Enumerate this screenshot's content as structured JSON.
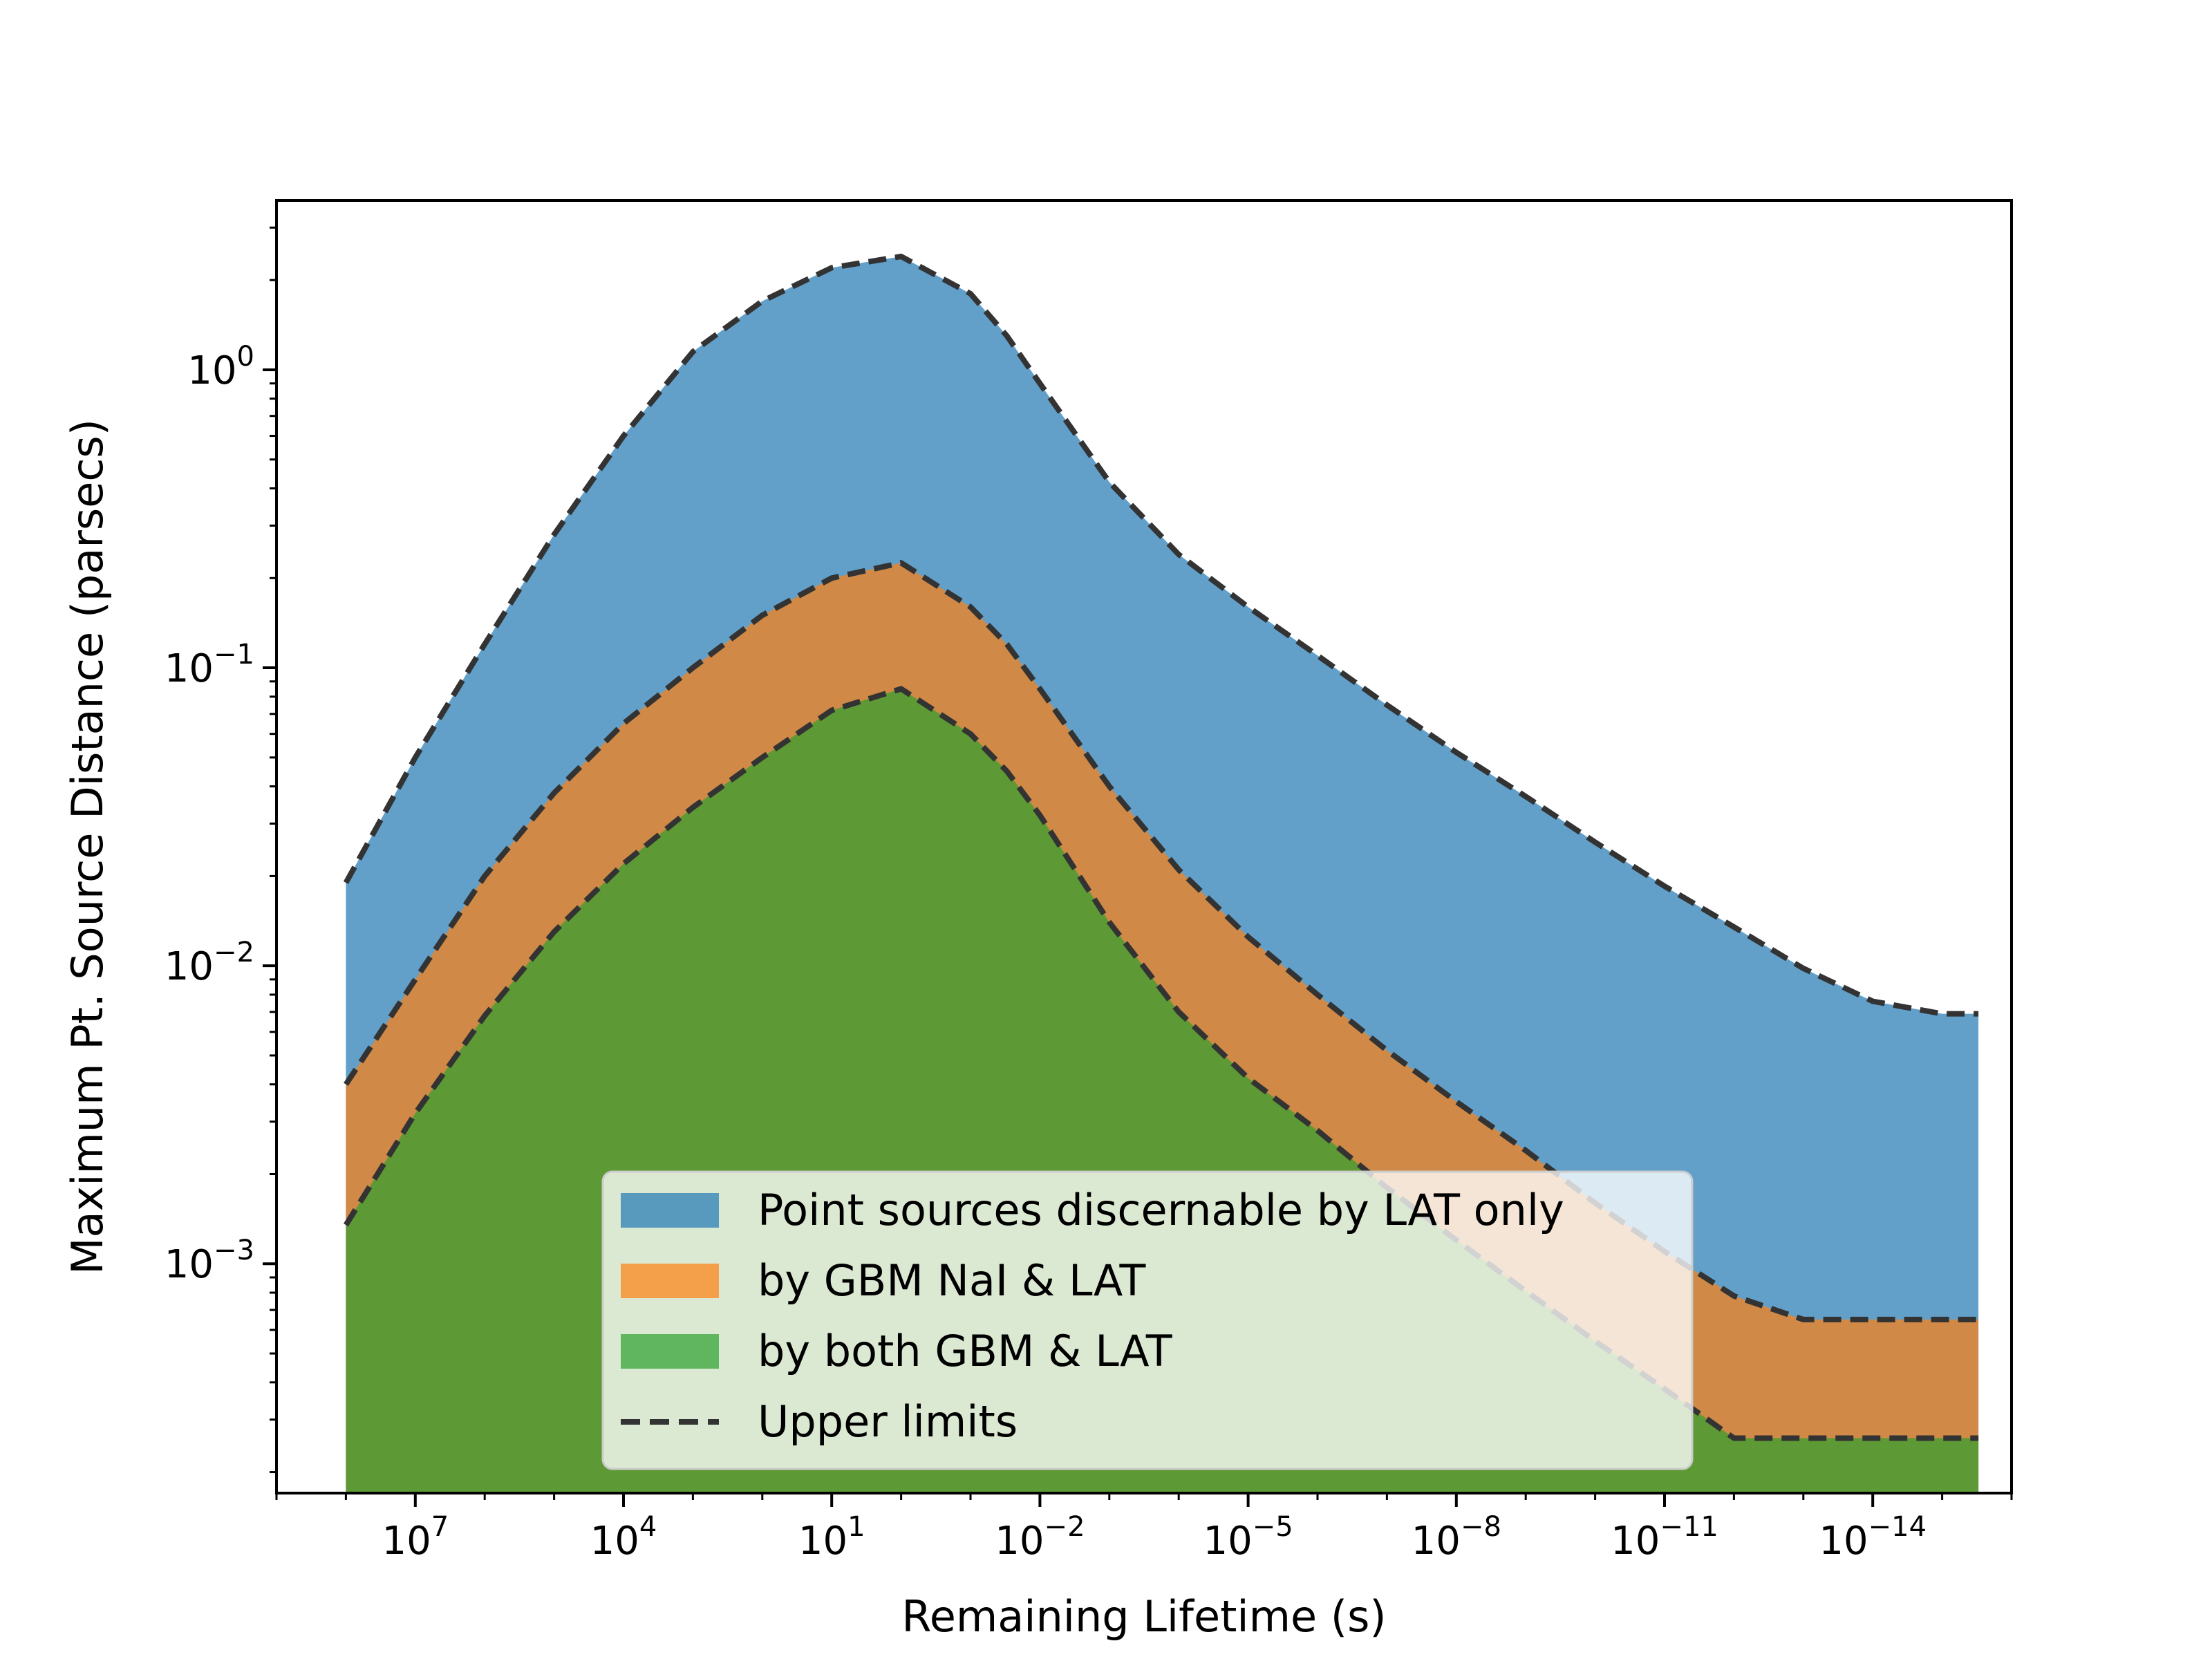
{
  "chart_data": {
    "type": "area",
    "title": "",
    "xlabel": "Remaining Lifetime (s)",
    "ylabel": "Maximum Pt. Source Distance (parsecs)",
    "xscale": "log",
    "yscale": "log",
    "x_axis_inverted": true,
    "xlim": [
      1000000000.0,
      1e-16
    ],
    "ylim": [
      0.00017,
      3.7
    ],
    "grid": false,
    "legend_position": "lower-center",
    "x_ticks": [
      {
        "base": "10",
        "exp": "7"
      },
      {
        "base": "10",
        "exp": "4"
      },
      {
        "base": "10",
        "exp": "1"
      },
      {
        "base": "10",
        "exp": "−2"
      },
      {
        "base": "10",
        "exp": "−5"
      },
      {
        "base": "10",
        "exp": "−8"
      },
      {
        "base": "10",
        "exp": "−11"
      },
      {
        "base": "10",
        "exp": "−14"
      }
    ],
    "y_ticks": [
      {
        "base": "10",
        "exp": "0"
      },
      {
        "base": "10",
        "exp": "−1"
      },
      {
        "base": "10",
        "exp": "−2"
      },
      {
        "base": "10",
        "exp": "−3"
      }
    ],
    "x": [
      100000000.0,
      10000000.0,
      1000000.0,
      100000.0,
      10000.0,
      1000.0,
      100.0,
      10.0,
      1,
      0.1,
      0.03,
      0.01,
      0.001,
      0.0001,
      1e-05,
      1e-06,
      1e-07,
      1e-08,
      1e-09,
      1e-10,
      1e-11,
      1e-12,
      1e-13,
      1e-14,
      1e-15,
      3e-16
    ],
    "series": [
      {
        "name": "Point sources discernable by LAT only",
        "color": "#1f77b4",
        "values": [
          0.019,
          0.05,
          0.12,
          0.28,
          0.6,
          1.15,
          1.7,
          2.2,
          2.4,
          1.8,
          1.3,
          0.9,
          0.42,
          0.24,
          0.16,
          0.11,
          0.075,
          0.052,
          0.037,
          0.026,
          0.0185,
          0.0135,
          0.0098,
          0.0076,
          0.0069,
          0.0069
        ]
      },
      {
        "name": "by GBM NaI & LAT",
        "color": "#ff7f0e",
        "values": [
          0.004,
          0.009,
          0.02,
          0.038,
          0.065,
          0.1,
          0.15,
          0.2,
          0.225,
          0.16,
          0.12,
          0.085,
          0.04,
          0.021,
          0.0125,
          0.008,
          0.0052,
          0.0035,
          0.0024,
          0.0016,
          0.0011,
          0.00078,
          0.00065,
          0.00065,
          0.00065,
          0.00065
        ]
      },
      {
        "name": "by both GBM & LAT",
        "color": "#2ca02c",
        "values": [
          0.00135,
          0.0032,
          0.0068,
          0.013,
          0.022,
          0.034,
          0.05,
          0.072,
          0.085,
          0.06,
          0.045,
          0.032,
          0.014,
          0.007,
          0.0042,
          0.0028,
          0.0018,
          0.0012,
          0.00081,
          0.00055,
          0.00038,
          0.00026,
          0.00026,
          0.00026,
          0.00026,
          0.00026
        ]
      }
    ],
    "upper_limits": {
      "name": "Upper limits",
      "style": "dashed",
      "color": "#333333"
    }
  }
}
